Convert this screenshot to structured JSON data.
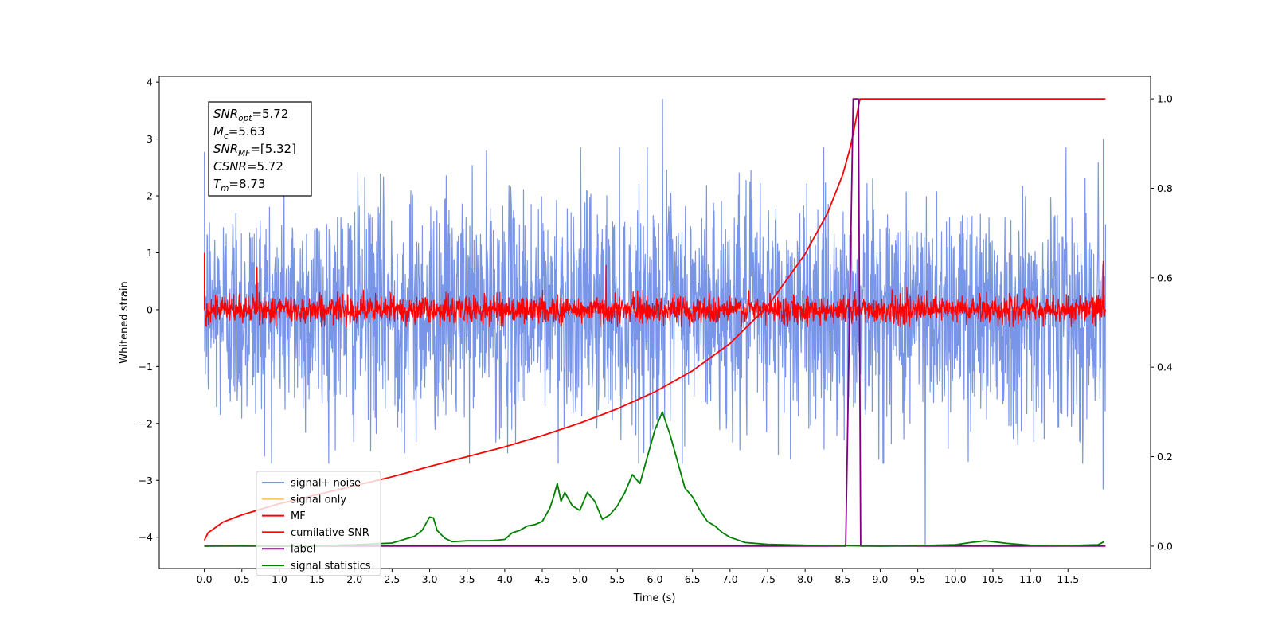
{
  "chart_data": {
    "type": "line",
    "title": "",
    "xlabel": "Time (s)",
    "ylabel": "Whitened strain",
    "y2label": "",
    "xlim": [
      -0.6,
      12.6
    ],
    "ylim": [
      -4.55,
      4.1
    ],
    "y2lim": [
      -0.05,
      1.05
    ],
    "x_ticks": [
      0.0,
      0.5,
      1.0,
      1.5,
      2.0,
      2.5,
      3.0,
      3.5,
      4.0,
      4.5,
      5.0,
      5.5,
      6.0,
      6.5,
      7.0,
      7.5,
      8.0,
      8.5,
      9.0,
      9.5,
      10.0,
      10.5,
      11.0,
      11.5
    ],
    "x_tick_labels": [
      "0.0",
      "0.5",
      "1.0",
      "1.5",
      "2.0",
      "2.5",
      "3.0",
      "3.5",
      "4.0",
      "4.5",
      "5.0",
      "5.5",
      "6.0",
      "6.5",
      "7.0",
      "7.5",
      "8.0",
      "8.5",
      "9.0",
      "9.5",
      "10.0",
      "10.5",
      "11.0",
      "11.5"
    ],
    "y_ticks": [
      -4,
      -3,
      -2,
      -1,
      0,
      1,
      2,
      3,
      4
    ],
    "y_tick_labels": [
      "−4",
      "−3",
      "−2",
      "−1",
      "0",
      "1",
      "2",
      "3",
      "4"
    ],
    "y2_ticks": [
      0.0,
      0.2,
      0.4,
      0.6,
      0.8,
      1.0
    ],
    "y2_tick_labels": [
      "0.0",
      "0.2",
      "0.4",
      "0.6",
      "0.8",
      "1.0"
    ],
    "grid": false,
    "legend_position": "lower-left",
    "annotation_box": {
      "position": "upper-left",
      "lines": [
        {
          "base": "SNR",
          "sub": "opt",
          "value": "=5.72"
        },
        {
          "base": "M",
          "sub": "c",
          "value": "=5.63"
        },
        {
          "base": "SNR",
          "sub": "MF",
          "value": "=[5.32]"
        },
        {
          "base": "CSNR",
          "sub": "",
          "value": "=5.72"
        },
        {
          "base": "T",
          "sub": "m",
          "value": "=8.73"
        }
      ]
    },
    "series": [
      {
        "name": "signal+ noise",
        "color": "#7895e8",
        "axis": "left",
        "style": "noise",
        "x_range": [
          0.0,
          12.0
        ],
        "amplitude_std": 1.0,
        "envelope": [
          -2.7,
          2.85
        ],
        "extreme_points": [
          {
            "x": 6.1,
            "y": 3.7
          },
          {
            "x": 9.6,
            "y": -4.15
          },
          {
            "x": 11.97,
            "y": 3.0
          },
          {
            "x": 11.97,
            "y": -3.15
          }
        ]
      },
      {
        "name": "signal only",
        "color": "#ffc66e",
        "axis": "left",
        "style": "hidden-under-MF",
        "x_range": [
          0.0,
          12.0
        ]
      },
      {
        "name": "MF",
        "color": "#ff0000",
        "axis": "left",
        "style": "noise",
        "x_range": [
          0.0,
          12.0
        ],
        "amplitude_std": 0.12,
        "envelope": [
          -0.3,
          0.4
        ],
        "extreme_points": [
          {
            "x": 0.0,
            "y": 1.0
          },
          {
            "x": 0.7,
            "y": 0.75
          },
          {
            "x": 5.35,
            "y": 0.78
          },
          {
            "x": 11.97,
            "y": 0.85
          }
        ]
      },
      {
        "name": "cumilative SNR",
        "color": "#ff0000",
        "axis": "right",
        "x": [
          0.0,
          0.05,
          0.25,
          0.5,
          1.0,
          1.5,
          2.0,
          2.5,
          3.0,
          3.5,
          4.0,
          4.5,
          5.0,
          5.5,
          6.0,
          6.5,
          7.0,
          7.5,
          8.0,
          8.3,
          8.5,
          8.6,
          8.65,
          8.73,
          12.0
        ],
        "values": [
          0.013,
          0.03,
          0.054,
          0.07,
          0.095,
          0.115,
          0.135,
          0.155,
          0.178,
          0.2,
          0.222,
          0.247,
          0.275,
          0.307,
          0.345,
          0.392,
          0.453,
          0.536,
          0.653,
          0.745,
          0.83,
          0.89,
          0.93,
          1.0,
          1.0
        ]
      },
      {
        "name": "label",
        "color": "#800080",
        "axis": "right",
        "x": [
          0.0,
          8.54,
          8.64,
          8.71,
          8.74,
          12.0
        ],
        "values": [
          0.0,
          0.0,
          1.0,
          1.0,
          0.0,
          0.0
        ]
      },
      {
        "name": "signal statistics",
        "color": "#008000",
        "axis": "right",
        "x": [
          0.0,
          0.5,
          1.0,
          1.5,
          2.0,
          2.5,
          2.6,
          2.8,
          2.9,
          3.0,
          3.05,
          3.1,
          3.2,
          3.3,
          3.5,
          3.8,
          4.0,
          4.1,
          4.2,
          4.3,
          4.4,
          4.5,
          4.6,
          4.65,
          4.7,
          4.75,
          4.8,
          4.9,
          5.0,
          5.1,
          5.2,
          5.3,
          5.4,
          5.5,
          5.6,
          5.7,
          5.8,
          5.9,
          6.0,
          6.1,
          6.12,
          6.2,
          6.3,
          6.4,
          6.5,
          6.6,
          6.7,
          6.8,
          6.9,
          7.0,
          7.2,
          7.5,
          8.0,
          8.5,
          9.0,
          9.5,
          10.0,
          10.2,
          10.4,
          10.5,
          10.7,
          11.0,
          11.5,
          11.9,
          11.98
        ],
        "values": [
          0.0,
          0.001,
          0.0,
          0.001,
          0.003,
          0.007,
          0.012,
          0.022,
          0.035,
          0.065,
          0.063,
          0.035,
          0.018,
          0.01,
          0.012,
          0.012,
          0.015,
          0.03,
          0.035,
          0.045,
          0.048,
          0.055,
          0.085,
          0.11,
          0.14,
          0.1,
          0.12,
          0.09,
          0.08,
          0.12,
          0.1,
          0.06,
          0.07,
          0.09,
          0.12,
          0.16,
          0.14,
          0.2,
          0.26,
          0.3,
          0.29,
          0.25,
          0.19,
          0.13,
          0.11,
          0.08,
          0.055,
          0.045,
          0.03,
          0.02,
          0.008,
          0.004,
          0.002,
          0.001,
          0.0,
          0.001,
          0.003,
          0.008,
          0.012,
          0.01,
          0.006,
          0.002,
          0.001,
          0.003,
          0.01
        ]
      }
    ]
  }
}
